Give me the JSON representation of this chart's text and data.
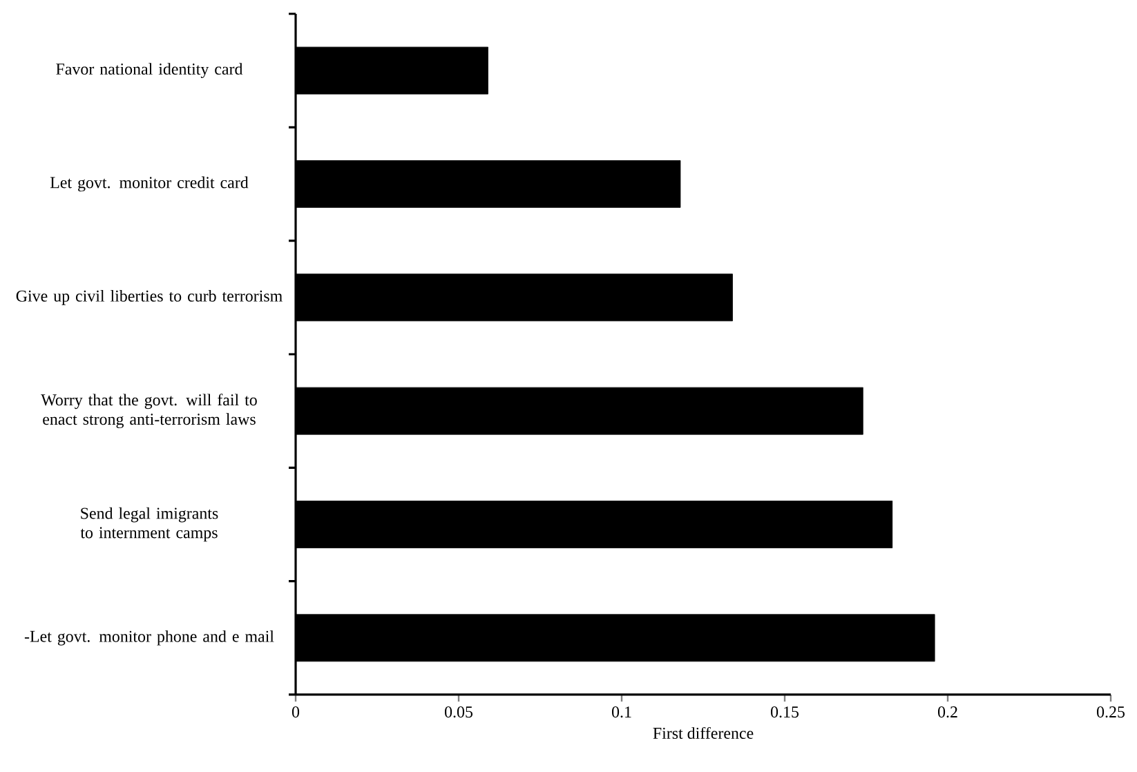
{
  "chart_data": {
    "type": "bar",
    "orientation": "horizontal",
    "xlabel": "First difference",
    "categories": [
      "Favor national identity card",
      "Let govt. monitor credit card",
      "Give up civil liberties to curb terrorism",
      "Worry that the govt. will fail to enact strong anti-terrorism laws",
      "Send legal imigrants to internment camps",
      "-Let govt. monitor phone and e mail"
    ],
    "values": [
      0.059,
      0.118,
      0.134,
      0.174,
      0.183,
      0.196
    ],
    "color": "#000000",
    "xlim": [
      0,
      0.25
    ],
    "xticks": [
      0,
      0.05,
      0.1,
      0.15,
      0.2,
      0.25
    ],
    "grid": false
  }
}
